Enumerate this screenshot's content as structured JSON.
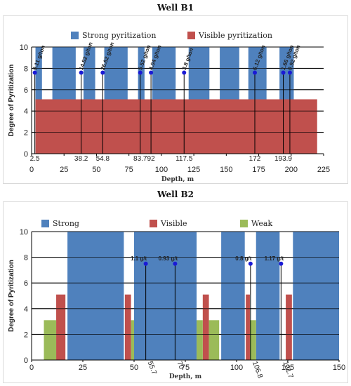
{
  "chart_data": [
    {
      "type": "bar",
      "title": "Well B1",
      "ylabel": "Degree of Pyritization",
      "xlabel": "Depth, m",
      "xlim": [
        0,
        225
      ],
      "ylim": [
        0,
        10
      ],
      "xticks": [
        0,
        25,
        50,
        75,
        100,
        125,
        150,
        175,
        200,
        225
      ],
      "yticks": [
        0,
        2,
        4,
        6,
        8,
        10
      ],
      "grid": "horizontal",
      "legend_position": "top",
      "series": [
        {
          "name": "Strong pyritization",
          "color": "#4f81bd",
          "value": 10,
          "intervals": [
            [
              3,
              8
            ],
            [
              16,
              34
            ],
            [
              40,
              49
            ],
            [
              56,
              74
            ],
            [
              82,
              87
            ],
            [
              93,
              111
            ],
            [
              121,
              137
            ],
            [
              145,
              160
            ],
            [
              167,
              181
            ],
            [
              191,
              202
            ]
          ]
        },
        {
          "name": "Visible pyritization",
          "color": "#c0504d",
          "value": 5.1,
          "intervals": [
            [
              3,
              220
            ]
          ]
        }
      ],
      "samples": [
        {
          "depth": 2.5,
          "depth_label": "2.5",
          "grade_label": "0.11 g/ton",
          "y": 7.6
        },
        {
          "depth": 38.2,
          "depth_label": "38.2",
          "grade_label": "14.82 g/ton",
          "y": 7.6
        },
        {
          "depth": 54.8,
          "depth_label": "54.8",
          "grade_label": "26.62 g/ton",
          "y": 7.6
        },
        {
          "depth": 83.7,
          "depth_label": "83.7",
          "grade_label": "5.52 g/ton",
          "y": 7.6
        },
        {
          "depth": 92,
          "depth_label": "92",
          "grade_label": "4.04 g/ton",
          "y": 7.6
        },
        {
          "depth": 117.5,
          "depth_label": "117.5",
          "grade_label": "3.8 g/ton",
          "y": 7.6
        },
        {
          "depth": 172,
          "depth_label": "172",
          "grade_label": "6.12 g/ton",
          "y": 7.6
        },
        {
          "depth": 193.9,
          "depth_label": "193.9",
          "grade_label": "1.66 g/ton",
          "y": 7.6
        },
        {
          "depth": 199,
          "depth_label": "",
          "grade_label": "0.92 g/ton",
          "y": 7.6
        }
      ]
    },
    {
      "type": "bar",
      "title": "Well B2",
      "ylabel": "Degree of Pyritization",
      "xlabel": "Depth, m",
      "xlim": [
        0,
        150
      ],
      "ylim": [
        0,
        10
      ],
      "xticks": [
        0,
        25,
        50,
        75,
        100,
        125,
        150
      ],
      "yticks": [
        0,
        2,
        4,
        6,
        8,
        10
      ],
      "grid": "horizontal",
      "legend_position": "top",
      "series": [
        {
          "name": "Strong",
          "color": "#4f81bd",
          "value": 10,
          "intervals": [
            [
              17.5,
              45
            ],
            [
              50,
              80.5
            ],
            [
              92.5,
              104
            ],
            [
              109.5,
              121
            ],
            [
              127.5,
              150
            ]
          ]
        },
        {
          "name": "Visible",
          "color": "#c0504d",
          "value": 5.1,
          "intervals": [
            [
              12,
              16.5
            ],
            [
              45.5,
              48.5
            ],
            [
              83.5,
              86.5
            ],
            [
              104.5,
              106.5
            ],
            [
              124,
              127
            ]
          ]
        },
        {
          "name": "Weak",
          "color": "#9bbb59",
          "value": 3.1,
          "intervals": [
            [
              6,
              12
            ],
            [
              48.5,
              50
            ],
            [
              80.5,
              83.5
            ],
            [
              86.5,
              91.5
            ],
            [
              106.5,
              109.5
            ]
          ]
        }
      ],
      "samples": [
        {
          "depth": 55.7,
          "depth_label": "55.7",
          "grade_label": "1.1 g/t",
          "y": 7.5
        },
        {
          "depth": 70,
          "depth_label": "70",
          "grade_label": "0.93 g/t",
          "y": 7.5
        },
        {
          "depth": 106.8,
          "depth_label": "106.8",
          "grade_label": "0.8 g/t",
          "y": 7.5
        },
        {
          "depth": 121.7,
          "depth_label": "121.7",
          "grade_label": "1.17 g/t",
          "y": 7.5
        }
      ]
    }
  ]
}
